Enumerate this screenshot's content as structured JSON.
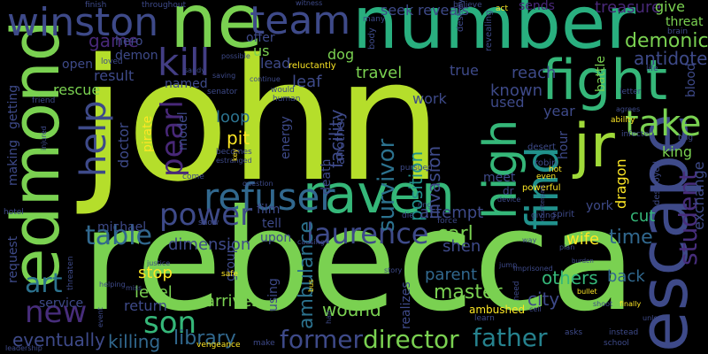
{
  "words": [
    {
      "text": "john",
      "color": "#b5de2b"
    },
    {
      "text": "rebecca",
      "color": "#7ad151"
    },
    {
      "text": "number",
      "color": "#29af7f"
    },
    {
      "text": "ne",
      "color": "#7ad151"
    },
    {
      "text": "edmond",
      "color": "#7ad151"
    },
    {
      "text": "raven",
      "color": "#35b779"
    },
    {
      "text": "escape",
      "color": "#3e4a89"
    },
    {
      "text": "fight",
      "color": "#35b779"
    },
    {
      "text": "jr",
      "color": "#a0da39"
    },
    {
      "text": "winston",
      "color": "#3e4a89"
    },
    {
      "text": "team",
      "color": "#3e4a89"
    },
    {
      "text": "refuser",
      "color": "#31688e"
    },
    {
      "text": "find",
      "color": "#21918c"
    },
    {
      "text": "high",
      "color": "#35b779"
    },
    {
      "text": "kill",
      "color": "#433e85"
    },
    {
      "text": "help",
      "color": "#3e4a89"
    },
    {
      "text": "pearl",
      "color": "#482878"
    },
    {
      "text": "take",
      "color": "#7ad151"
    },
    {
      "text": "power",
      "color": "#3e4a89"
    },
    {
      "text": "laurence",
      "color": "#3e4a89"
    },
    {
      "text": "table",
      "color": "#31688e"
    },
    {
      "text": "new",
      "color": "#472d7b"
    },
    {
      "text": "art",
      "color": "#2c728e"
    },
    {
      "text": "son",
      "color": "#35b779"
    },
    {
      "text": "former",
      "color": "#3e4a89"
    },
    {
      "text": "director",
      "color": "#7ad151"
    },
    {
      "text": "father",
      "color": "#26828e"
    },
    {
      "text": "student",
      "color": "#472d7b"
    },
    {
      "text": "survivor",
      "color": "#2c728e"
    },
    {
      "text": "time",
      "color": "#31688e"
    },
    {
      "text": "demonic",
      "color": "#7ad151"
    },
    {
      "text": "antidote",
      "color": "#3e4a89"
    },
    {
      "text": "treasure",
      "color": "#482878"
    },
    {
      "text": "library",
      "color": "#31688e"
    },
    {
      "text": "killing",
      "color": "#31688e"
    },
    {
      "text": "master",
      "color": "#7ad151"
    },
    {
      "text": "ambulance",
      "color": "#2c728e"
    },
    {
      "text": "eventually",
      "color": "#3e4a89"
    },
    {
      "text": "facility",
      "color": "#3e4a89"
    },
    {
      "text": "invasion",
      "color": "#3e4a89"
    },
    {
      "text": "position",
      "color": "#21918c"
    },
    {
      "text": "wound",
      "color": "#7ad151"
    },
    {
      "text": "city",
      "color": "#3e4a89"
    },
    {
      "text": "others",
      "color": "#35b779"
    },
    {
      "text": "back",
      "color": "#31688e"
    },
    {
      "text": "parent",
      "color": "#31688e"
    },
    {
      "text": "game",
      "color": "#482878"
    },
    {
      "text": "loop",
      "color": "#2c728e"
    },
    {
      "text": "pit",
      "color": "#fde725"
    },
    {
      "text": "doctor",
      "color": "#3e4a89"
    },
    {
      "text": "dimension",
      "color": "#3e4a89"
    },
    {
      "text": "level",
      "color": "#7ad151"
    },
    {
      "text": "stop",
      "color": "#fde725"
    },
    {
      "text": "return",
      "color": "#3e4a89"
    },
    {
      "text": "arrives",
      "color": "#7ad151"
    },
    {
      "text": "carl",
      "color": "#7ad151"
    },
    {
      "text": "shen",
      "color": "#3e4a89"
    },
    {
      "text": "attempt",
      "color": "#3e4a89"
    },
    {
      "text": "wife",
      "color": "#fde725"
    },
    {
      "text": "cut",
      "color": "#35b779"
    },
    {
      "text": "exchange",
      "color": "#3e4a89"
    },
    {
      "text": "king",
      "color": "#7ad151"
    },
    {
      "text": "dragon",
      "color": "#fde725"
    },
    {
      "text": "year",
      "color": "#3e4a89"
    },
    {
      "text": "known",
      "color": "#3e4a89"
    },
    {
      "text": "used",
      "color": "#3e4a89"
    },
    {
      "text": "reach",
      "color": "#3e4a89"
    },
    {
      "text": "true",
      "color": "#3e4a89"
    },
    {
      "text": "work",
      "color": "#3e4a89"
    },
    {
      "text": "travel",
      "color": "#7ad151"
    },
    {
      "text": "leaf",
      "color": "#3e4a89"
    },
    {
      "text": "lead",
      "color": "#3e4a89"
    },
    {
      "text": "us",
      "color": "#7ad151"
    },
    {
      "text": "dog",
      "color": "#7ad151"
    },
    {
      "text": "offer",
      "color": "#3e4a89"
    },
    {
      "text": "seek",
      "color": "#3e4a89"
    },
    {
      "text": "reveals",
      "color": "#3e4a89"
    },
    {
      "text": "give",
      "color": "#7ad151"
    },
    {
      "text": "threat",
      "color": "#7ad151"
    },
    {
      "text": "battle",
      "color": "#7ad151"
    },
    {
      "text": "blood",
      "color": "#3e4a89"
    },
    {
      "text": "sends",
      "color": "#482878"
    },
    {
      "text": "result",
      "color": "#3e4a89"
    },
    {
      "text": "rescue",
      "color": "#7ad151"
    },
    {
      "text": "open",
      "color": "#3e4a89"
    },
    {
      "text": "demon",
      "color": "#3e4a89"
    },
    {
      "text": "hero",
      "color": "#3e4a89"
    },
    {
      "text": "named",
      "color": "#3e4a89"
    },
    {
      "text": "making",
      "color": "#3e4a89"
    },
    {
      "text": "getting",
      "color": "#3e4a89"
    },
    {
      "text": "request",
      "color": "#3e4a89"
    },
    {
      "text": "service",
      "color": "#3e4a89"
    },
    {
      "text": "michael",
      "color": "#3e4a89"
    },
    {
      "text": "pirate",
      "color": "#fde725"
    },
    {
      "text": "model",
      "color": "#3e4a89"
    },
    {
      "text": "film",
      "color": "#3e4a89"
    },
    {
      "text": "energy",
      "color": "#3e4a89"
    },
    {
      "text": "death",
      "color": "#3e4a89"
    },
    {
      "text": "another",
      "color": "#3e4a89"
    },
    {
      "text": "tell",
      "color": "#3e4a89"
    },
    {
      "text": "upon",
      "color": "#3e4a89"
    },
    {
      "text": "group",
      "color": "#3e4a89"
    },
    {
      "text": "using",
      "color": "#3e4a89"
    },
    {
      "text": "realizes",
      "color": "#3e4a89"
    },
    {
      "text": "meet",
      "color": "#3e4a89"
    },
    {
      "text": "york",
      "color": "#3e4a89"
    },
    {
      "text": "hour",
      "color": "#3e4a89"
    },
    {
      "text": "reluctantly",
      "color": "#fde725"
    },
    {
      "text": "body",
      "color": "#3e4a89"
    },
    {
      "text": "revealing",
      "color": "#3e4a89"
    },
    {
      "text": "destroy",
      "color": "#3e4a89"
    },
    {
      "text": "ambushed",
      "color": "#fde725"
    },
    {
      "text": "finish",
      "color": "#3e4a89"
    },
    {
      "text": "throughout",
      "color": "#3e4a89"
    },
    {
      "text": "believe",
      "color": "#3e4a89"
    },
    {
      "text": "act",
      "color": "#fde725"
    },
    {
      "text": "many",
      "color": "#3e4a89"
    },
    {
      "text": "brain",
      "color": "#3e4a89"
    },
    {
      "text": "life",
      "color": "#3e4a89"
    },
    {
      "text": "ability",
      "color": "#fde725"
    },
    {
      "text": "agrees",
      "color": "#3e4a89"
    },
    {
      "text": "desert",
      "color": "#3e4a89"
    },
    {
      "text": "letter",
      "color": "#3e4a89"
    },
    {
      "text": "infected",
      "color": "#3e4a89"
    },
    {
      "text": "bug",
      "color": "#3e4a89"
    },
    {
      "text": "robin",
      "color": "#3e4a89"
    },
    {
      "text": "hot",
      "color": "#fde725"
    },
    {
      "text": "even",
      "color": "#fde725"
    },
    {
      "text": "dr",
      "color": "#3e4a89"
    },
    {
      "text": "powerful",
      "color": "#fde725"
    },
    {
      "text": "destroyed",
      "color": "#3e4a89"
    },
    {
      "text": "spirit",
      "color": "#3e4a89"
    },
    {
      "text": "giving",
      "color": "#3e4a89"
    },
    {
      "text": "device",
      "color": "#3e4a89"
    },
    {
      "text": "die",
      "color": "#3e4a89"
    },
    {
      "text": "ring",
      "color": "#3e4a89"
    },
    {
      "text": "force",
      "color": "#3e4a89"
    },
    {
      "text": "way",
      "color": "#3e4a89"
    },
    {
      "text": "plan",
      "color": "#3e4a89"
    },
    {
      "text": "sandy",
      "color": "#3e4a89"
    },
    {
      "text": "loved",
      "color": "#3e4a89"
    },
    {
      "text": "senator",
      "color": "#3e4a89"
    },
    {
      "text": "saving",
      "color": "#3e4a89"
    },
    {
      "text": "continue",
      "color": "#3e4a89"
    },
    {
      "text": "would",
      "color": "#3e4a89"
    },
    {
      "text": "human",
      "color": "#3e4a89"
    },
    {
      "text": "friend",
      "color": "#3e4a89"
    },
    {
      "text": "injured",
      "color": "#3e4a89"
    },
    {
      "text": "becomes",
      "color": "#3e4a89"
    },
    {
      "text": "come",
      "color": "#3e4a89"
    },
    {
      "text": "show",
      "color": "#3e4a89"
    },
    {
      "text": "question",
      "color": "#3e4a89"
    },
    {
      "text": "estranged",
      "color": "#3e4a89"
    },
    {
      "text": "key",
      "color": "#fde725"
    },
    {
      "text": "pursued",
      "color": "#3e4a89"
    },
    {
      "text": "causing",
      "color": "#3e4a89"
    },
    {
      "text": "hotel",
      "color": "#3e4a89"
    },
    {
      "text": "threaten",
      "color": "#3e4a89"
    },
    {
      "text": "safe",
      "color": "#fde725"
    },
    {
      "text": "helping",
      "color": "#3e4a89"
    },
    {
      "text": "miss",
      "color": "#3e4a89"
    },
    {
      "text": "justice",
      "color": "#3e4a89"
    },
    {
      "text": "bus",
      "color": "#fde725"
    },
    {
      "text": "hair",
      "color": "#3e4a89"
    },
    {
      "text": "event",
      "color": "#3e4a89"
    },
    {
      "text": "story",
      "color": "#3e4a89"
    },
    {
      "text": "jump",
      "color": "#3e4a89"
    },
    {
      "text": "imprisoned",
      "color": "#3e4a89"
    },
    {
      "text": "need",
      "color": "#3e4a89"
    },
    {
      "text": "cell",
      "color": "#3e4a89"
    },
    {
      "text": "learn",
      "color": "#3e4a89"
    },
    {
      "text": "asks",
      "color": "#3e4a89"
    },
    {
      "text": "instead",
      "color": "#3e4a89"
    },
    {
      "text": "school",
      "color": "#3e4a89"
    },
    {
      "text": "shoot",
      "color": "#3e4a89"
    },
    {
      "text": "unlock",
      "color": "#3e4a89"
    },
    {
      "text": "finally",
      "color": "#fde725"
    },
    {
      "text": "bullet",
      "color": "#fde725"
    },
    {
      "text": "leadership",
      "color": "#3e4a89"
    },
    {
      "text": "vengeance",
      "color": "#fde725"
    },
    {
      "text": "make",
      "color": "#3e4a89"
    },
    {
      "text": "witness",
      "color": "#3e4a89"
    },
    {
      "text": "counterpart",
      "color": "#3e4a89"
    },
    {
      "text": "possible",
      "color": "#3e4a89"
    },
    {
      "text": "burden",
      "color": "#3e4a89"
    }
  ]
}
